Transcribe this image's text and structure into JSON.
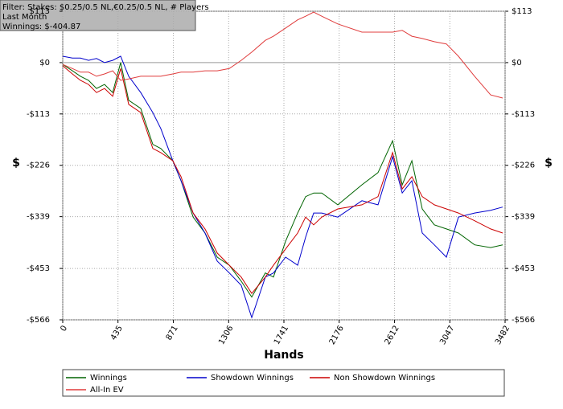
{
  "chart_data": {
    "type": "line",
    "title_lines": [
      "Filter: Stakes: $0.25/0.5 NL,€0.25/0.5 NL, # Players",
      "Last Month",
      "Winnings: $-404.87"
    ],
    "x_label": "Hands",
    "y_label": "$",
    "xlim": [
      0,
      3482
    ],
    "xticks": [
      0,
      435,
      871,
      1306,
      1741,
      2176,
      2612,
      3047,
      3482
    ],
    "ylim": [
      -566,
      113
    ],
    "yticks": [
      {
        "value": -566,
        "label": "-$566"
      },
      {
        "value": -453,
        "label": "-$453"
      },
      {
        "value": -339,
        "label": "-$339"
      },
      {
        "value": -226,
        "label": "-$226"
      },
      {
        "value": -113,
        "label": "-$113"
      },
      {
        "value": 0,
        "label": "$0"
      },
      {
        "value": 113,
        "label": "$113"
      }
    ],
    "grid": true,
    "x": [
      0,
      76,
      139,
      203,
      266,
      329,
      393,
      456,
      519,
      614,
      709,
      772,
      867,
      931,
      1026,
      1120,
      1216,
      1311,
      1405,
      1488,
      1595,
      1659,
      1754,
      1849,
      1912,
      1975,
      2039,
      2165,
      2355,
      2482,
      2596,
      2672,
      2748,
      2830,
      2925,
      3020,
      3115,
      3242,
      3368,
      3463
    ],
    "series": [
      {
        "name": "Winnings",
        "color": "#006400",
        "values": [
          -4,
          -18,
          -30,
          -39,
          -57,
          -48,
          -66,
          0,
          -83,
          -101,
          -180,
          -189,
          -216,
          -260,
          -340,
          -375,
          -428,
          -446,
          -481,
          -516,
          -463,
          -472,
          -393,
          -331,
          -295,
          -287,
          -287,
          -313,
          -269,
          -242,
          -172,
          -269,
          -216,
          -322,
          -357,
          -366,
          -375,
          -401,
          -407,
          -401
        ]
      },
      {
        "name": "Showdown Winnings",
        "color": "#0000cc",
        "values": [
          14,
          10,
          10,
          5,
          9,
          0,
          5,
          14,
          -30,
          -66,
          -110,
          -145,
          -216,
          -260,
          -331,
          -375,
          -437,
          -463,
          -490,
          -561,
          -472,
          -463,
          -428,
          -446,
          -384,
          -331,
          -331,
          -340,
          -304,
          -313,
          -207,
          -287,
          -260,
          -375,
          -401,
          -428,
          -340,
          -331,
          -325,
          -318
        ]
      },
      {
        "name": "Non Showdown Winnings",
        "color": "#cc0000",
        "values": [
          -7,
          -25,
          -39,
          -48,
          -66,
          -57,
          -74,
          -13,
          -92,
          -110,
          -189,
          -198,
          -216,
          -251,
          -331,
          -366,
          -419,
          -446,
          -472,
          -508,
          -472,
          -446,
          -410,
          -375,
          -340,
          -357,
          -340,
          -322,
          -313,
          -295,
          -198,
          -278,
          -251,
          -295,
          -313,
          -322,
          -331,
          -348,
          -366,
          -375
        ]
      },
      {
        "name": "All-In EV",
        "color": "#e03c3c",
        "values": [
          -4,
          -13,
          -21,
          -21,
          -30,
          -25,
          -18,
          -39,
          -36,
          -30,
          -30,
          -30,
          -25,
          -21,
          -21,
          -18,
          -18,
          -13,
          5,
          23,
          49,
          58,
          76,
          94,
          102,
          111,
          102,
          85,
          67,
          67,
          67,
          71,
          58,
          53,
          46,
          41,
          14,
          -30,
          -71,
          -78
        ]
      }
    ]
  }
}
